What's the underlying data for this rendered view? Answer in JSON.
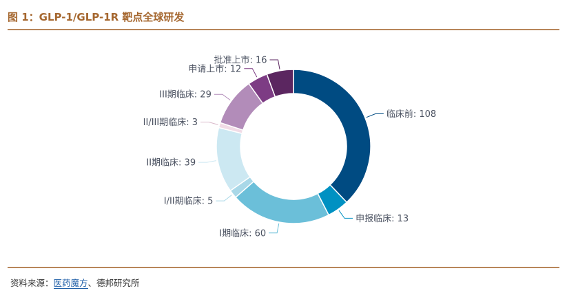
{
  "figure": {
    "title": "图 1：GLP-1/GLP-1R 靶点全球研发",
    "source_prefix": "资料来源：",
    "source_link": "医药魔方",
    "source_suffix": "、德邦研究所"
  },
  "chart_data": {
    "type": "pie",
    "subtype": "donut",
    "slices": [
      {
        "label": "临床前",
        "value": 108,
        "color": "#004b82"
      },
      {
        "label": "申报临床",
        "value": 13,
        "color": "#0091c2"
      },
      {
        "label": "I期临床",
        "value": 60,
        "color": "#6bbfd9"
      },
      {
        "label": "I/II期临床",
        "value": 5,
        "color": "#a9d8e8"
      },
      {
        "label": "II期临床",
        "value": 39,
        "color": "#cce8f2"
      },
      {
        "label": "II/III期临床",
        "value": 3,
        "color": "#f1dbe6"
      },
      {
        "label": "III期临床",
        "value": 29,
        "color": "#b28cb9"
      },
      {
        "label": "申请上市",
        "value": 12,
        "color": "#7d3c84"
      },
      {
        "label": "批准上市",
        "value": 16,
        "color": "#5b2660"
      }
    ]
  }
}
